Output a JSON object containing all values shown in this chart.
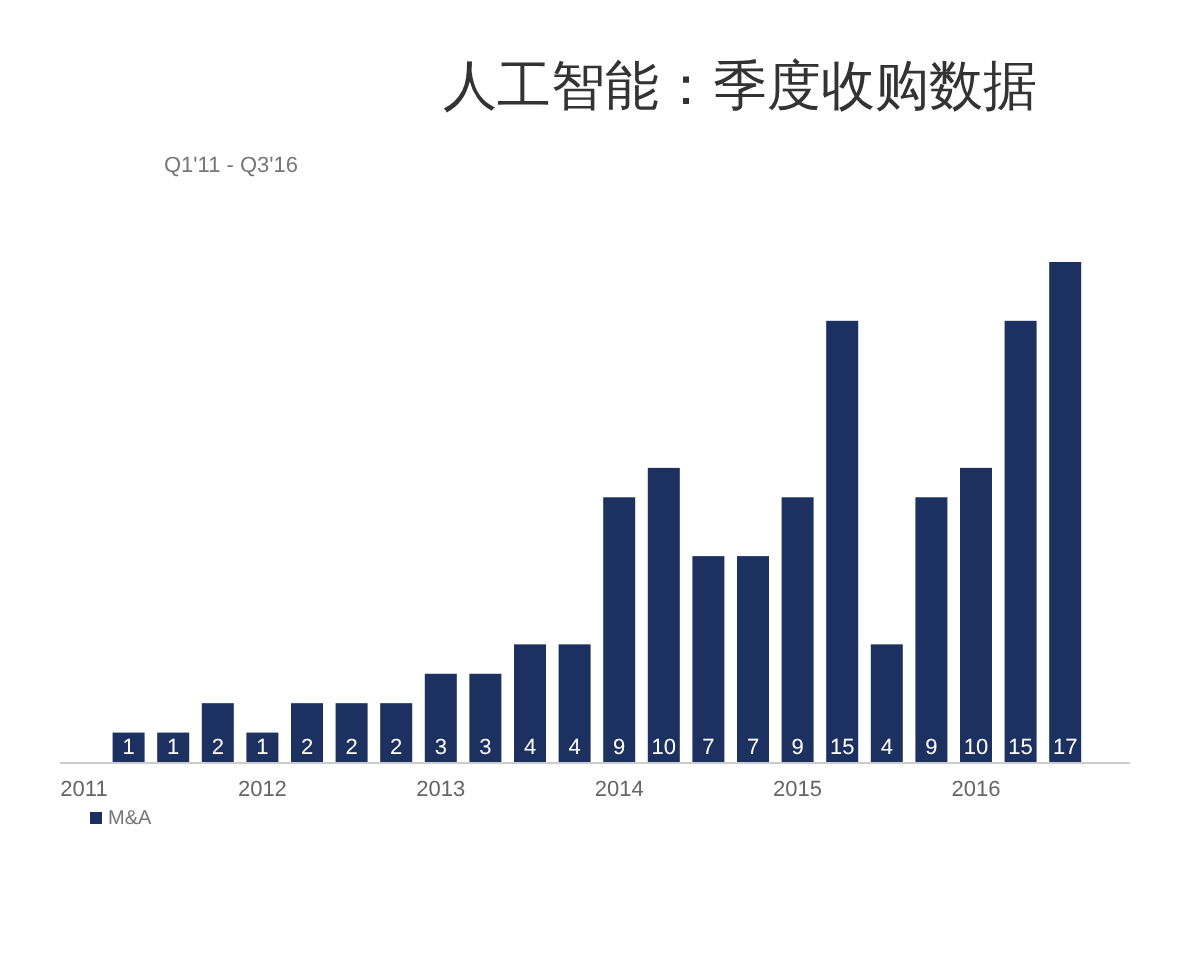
{
  "chart_data": {
    "type": "bar",
    "title": "人工智能：季度收购数据",
    "subtitle": "Q1'11 - Q3'16",
    "categories": [
      "2011",
      null,
      null,
      null,
      "2012",
      null,
      null,
      null,
      "2013",
      null,
      null,
      null,
      "2014",
      null,
      null,
      null,
      "2015",
      null,
      null,
      null,
      "2016",
      null,
      null
    ],
    "series": [
      {
        "name": "M&A",
        "color": "#1c3160",
        "values": [
          null,
          1,
          1,
          2,
          1,
          2,
          2,
          2,
          3,
          3,
          4,
          4,
          9,
          10,
          7,
          7,
          9,
          15,
          4,
          9,
          10,
          15,
          17
        ]
      }
    ],
    "data_labels": true,
    "legend": "bottom left",
    "grid": false
  }
}
